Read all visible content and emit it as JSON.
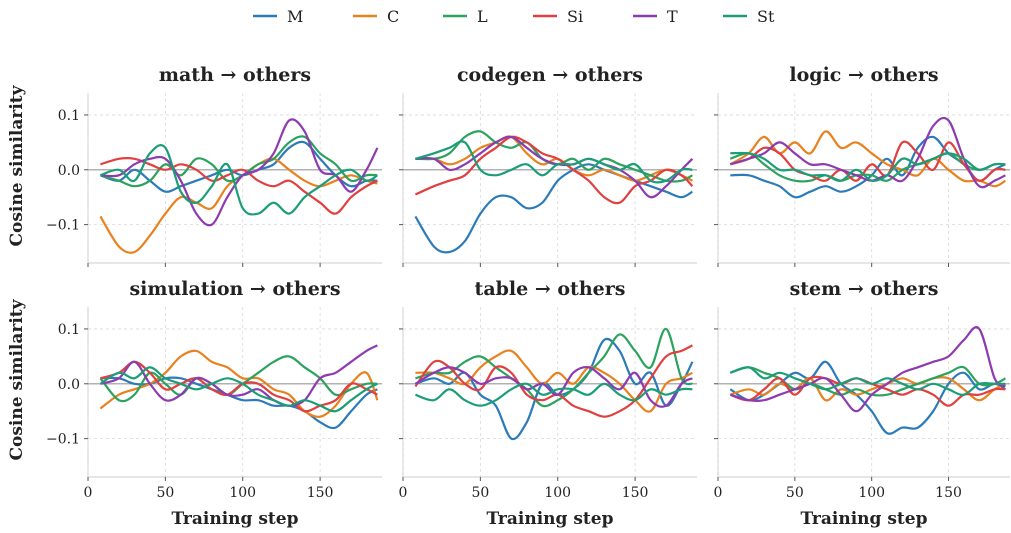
{
  "legend": [
    {
      "label": "M",
      "color": "#2b7bba"
    },
    {
      "label": "C",
      "color": "#e8821e"
    },
    {
      "label": "L",
      "color": "#2ca25f"
    },
    {
      "label": "Si",
      "color": "#e04040"
    },
    {
      "label": "T",
      "color": "#8e3ab0"
    },
    {
      "label": "St",
      "color": "#1b9e77"
    }
  ],
  "ylabel": "Cosine similarity",
  "xlabel": "Training step",
  "chart_data": [
    {
      "type": "line",
      "title": "math → others",
      "xlim": [
        0,
        190
      ],
      "ylim": [
        -0.17,
        0.14
      ],
      "xticks": [
        "0",
        "50",
        "100",
        "150"
      ],
      "yticks": [
        "−0.1",
        "0.0",
        "0.1"
      ],
      "x": [
        8,
        20,
        30,
        40,
        50,
        60,
        70,
        80,
        90,
        100,
        110,
        120,
        130,
        140,
        150,
        160,
        170,
        180,
        187
      ],
      "series": [
        {
          "name": "M",
          "values": [
            -0.01,
            -0.02,
            0.0,
            -0.02,
            -0.04,
            -0.03,
            -0.02,
            -0.01,
            0.0,
            -0.01,
            0.0,
            0.01,
            0.04,
            0.05,
            0.02,
            -0.01,
            -0.03,
            -0.02,
            -0.02
          ]
        },
        {
          "name": "C",
          "values": [
            -0.085,
            -0.14,
            -0.15,
            -0.12,
            -0.08,
            -0.05,
            -0.06,
            -0.07,
            -0.03,
            -0.01,
            0.01,
            0.02,
            0.0,
            -0.02,
            -0.03,
            -0.02,
            -0.01,
            -0.02,
            -0.025
          ]
        },
        {
          "name": "L",
          "values": [
            -0.01,
            -0.02,
            -0.03,
            -0.02,
            0.01,
            -0.01,
            0.02,
            0.01,
            -0.02,
            -0.01,
            0.01,
            0.02,
            0.05,
            0.06,
            0.03,
            0.01,
            -0.02,
            -0.01,
            -0.01
          ]
        },
        {
          "name": "Si",
          "values": [
            0.01,
            0.02,
            0.02,
            0.01,
            0.0,
            0.01,
            0.0,
            -0.02,
            -0.01,
            0.0,
            -0.02,
            -0.03,
            -0.02,
            -0.04,
            -0.06,
            -0.08,
            -0.05,
            -0.03,
            -0.02
          ]
        },
        {
          "name": "T",
          "values": [
            -0.01,
            -0.01,
            0.01,
            0.02,
            0.02,
            -0.02,
            -0.08,
            -0.1,
            -0.05,
            -0.01,
            0.0,
            0.03,
            0.09,
            0.07,
            0.0,
            -0.01,
            -0.04,
            0.0,
            0.04
          ]
        },
        {
          "name": "St",
          "values": [
            -0.01,
            0.0,
            -0.02,
            0.03,
            0.04,
            -0.04,
            -0.06,
            -0.03,
            0.01,
            -0.07,
            -0.08,
            -0.06,
            -0.08,
            -0.05,
            -0.03,
            -0.01,
            0.0,
            -0.02,
            -0.01
          ]
        }
      ]
    },
    {
      "type": "line",
      "title": "codegen → others",
      "xlim": [
        0,
        190
      ],
      "ylim": [
        -0.17,
        0.14
      ],
      "xticks": [
        "0",
        "50",
        "100",
        "150"
      ],
      "yticks": [
        "−0.1",
        "0.0",
        "0.1"
      ],
      "x": [
        8,
        20,
        30,
        40,
        50,
        60,
        70,
        80,
        90,
        100,
        110,
        120,
        130,
        140,
        150,
        160,
        170,
        180,
        187
      ],
      "series": [
        {
          "name": "M",
          "values": [
            -0.085,
            -0.14,
            -0.15,
            -0.13,
            -0.08,
            -0.05,
            -0.05,
            -0.07,
            -0.06,
            -0.02,
            0.0,
            0.01,
            0.0,
            -0.01,
            -0.02,
            -0.03,
            -0.04,
            -0.05,
            -0.04
          ]
        },
        {
          "name": "C",
          "values": [
            0.02,
            0.02,
            0.01,
            0.02,
            0.04,
            0.05,
            0.06,
            0.03,
            0.01,
            0.02,
            0.0,
            -0.01,
            0.0,
            -0.01,
            -0.02,
            -0.01,
            0.0,
            -0.01,
            -0.02
          ]
        },
        {
          "name": "L",
          "values": [
            0.02,
            0.02,
            0.03,
            0.06,
            0.07,
            0.05,
            0.04,
            0.05,
            0.02,
            0.01,
            0.02,
            0.0,
            0.02,
            0.01,
            0.0,
            -0.01,
            -0.02,
            -0.02,
            -0.01
          ]
        },
        {
          "name": "Si",
          "values": [
            -0.045,
            -0.03,
            -0.02,
            -0.01,
            0.02,
            0.04,
            0.06,
            0.05,
            0.03,
            0.02,
            0.0,
            -0.02,
            -0.05,
            -0.06,
            -0.03,
            -0.02,
            0.0,
            -0.01,
            -0.03
          ]
        },
        {
          "name": "T",
          "values": [
            0.02,
            0.02,
            0.0,
            0.01,
            0.03,
            0.05,
            0.06,
            0.04,
            0.02,
            0.01,
            0.01,
            0.02,
            0.01,
            0.0,
            -0.02,
            -0.05,
            -0.03,
            0.0,
            0.02
          ]
        },
        {
          "name": "St",
          "values": [
            0.02,
            0.03,
            0.04,
            0.05,
            0.0,
            -0.01,
            0.0,
            0.01,
            -0.01,
            0.01,
            0.01,
            0.02,
            0.01,
            0.0,
            0.01,
            -0.02,
            -0.02,
            0.0,
            0.0
          ]
        }
      ]
    },
    {
      "type": "line",
      "title": "logic → others",
      "xlim": [
        0,
        190
      ],
      "ylim": [
        -0.17,
        0.14
      ],
      "xticks": [
        "0",
        "50",
        "100",
        "150"
      ],
      "yticks": [
        "−0.1",
        "0.0",
        "0.1"
      ],
      "x": [
        8,
        20,
        30,
        40,
        50,
        60,
        70,
        80,
        90,
        100,
        110,
        120,
        130,
        140,
        150,
        160,
        170,
        180,
        187
      ],
      "series": [
        {
          "name": "M",
          "values": [
            -0.01,
            -0.01,
            -0.02,
            -0.03,
            -0.05,
            -0.04,
            -0.03,
            -0.04,
            -0.03,
            -0.01,
            0.02,
            -0.01,
            0.04,
            0.06,
            0.03,
            0.01,
            -0.02,
            0.0,
            0.01
          ]
        },
        {
          "name": "C",
          "values": [
            0.01,
            0.03,
            0.06,
            0.03,
            0.05,
            0.03,
            0.07,
            0.04,
            0.05,
            0.03,
            0.01,
            0.0,
            -0.01,
            0.02,
            0.0,
            -0.02,
            -0.02,
            -0.03,
            -0.02
          ]
        },
        {
          "name": "L",
          "values": [
            0.02,
            0.03,
            0.01,
            -0.01,
            -0.02,
            -0.02,
            -0.01,
            -0.02,
            -0.01,
            -0.01,
            -0.02,
            0.0,
            0.01,
            0.02,
            0.03,
            0.01,
            0.0,
            0.01,
            0.01
          ]
        },
        {
          "name": "Si",
          "values": [
            0.01,
            0.02,
            0.04,
            0.03,
            0.0,
            -0.01,
            -0.02,
            0.0,
            -0.02,
            0.01,
            -0.01,
            0.05,
            0.03,
            0.0,
            0.05,
            0.01,
            -0.02,
            0.0,
            0.0
          ]
        },
        {
          "name": "T",
          "values": [
            0.01,
            0.02,
            0.03,
            0.05,
            0.03,
            0.01,
            0.01,
            0.0,
            -0.01,
            -0.02,
            -0.01,
            -0.02,
            0.02,
            0.08,
            0.09,
            0.02,
            -0.03,
            -0.02,
            -0.01
          ]
        },
        {
          "name": "St",
          "values": [
            0.03,
            0.03,
            0.02,
            0.0,
            0.0,
            -0.01,
            -0.01,
            -0.02,
            0.0,
            -0.02,
            -0.01,
            0.02,
            0.01,
            0.02,
            0.03,
            0.02,
            0.0,
            0.01,
            0.01
          ]
        }
      ]
    },
    {
      "type": "line",
      "title": "simulation → others",
      "xlim": [
        0,
        190
      ],
      "ylim": [
        -0.17,
        0.14
      ],
      "xticks": [
        "0",
        "50",
        "100",
        "150"
      ],
      "yticks": [
        "−0.1",
        "0.0",
        "0.1"
      ],
      "x": [
        8,
        20,
        30,
        40,
        50,
        60,
        70,
        80,
        90,
        100,
        110,
        120,
        130,
        140,
        150,
        160,
        170,
        180,
        187
      ],
      "series": [
        {
          "name": "M",
          "values": [
            0.01,
            0.01,
            0.0,
            0.0,
            0.01,
            0.01,
            0.0,
            -0.01,
            -0.02,
            -0.03,
            -0.03,
            -0.04,
            -0.04,
            -0.05,
            -0.07,
            -0.08,
            -0.05,
            -0.02,
            -0.01
          ]
        },
        {
          "name": "C",
          "values": [
            -0.045,
            -0.02,
            -0.01,
            0.0,
            0.02,
            0.05,
            0.06,
            0.04,
            0.03,
            0.01,
            0.01,
            -0.01,
            -0.02,
            -0.05,
            -0.06,
            -0.04,
            0.0,
            0.02,
            -0.03
          ]
        },
        {
          "name": "L",
          "values": [
            0.01,
            -0.03,
            -0.02,
            0.02,
            0.0,
            -0.02,
            0.01,
            0.0,
            -0.02,
            0.0,
            0.02,
            0.04,
            0.05,
            0.03,
            0.01,
            -0.02,
            -0.01,
            0.0,
            0.0
          ]
        },
        {
          "name": "Si",
          "values": [
            0.01,
            0.02,
            0.04,
            0.02,
            -0.01,
            0.0,
            0.01,
            -0.01,
            -0.02,
            0.0,
            0.0,
            -0.02,
            -0.03,
            -0.05,
            -0.04,
            -0.03,
            0.0,
            -0.01,
            -0.02
          ]
        },
        {
          "name": "T",
          "values": [
            0.0,
            0.01,
            0.04,
            0.0,
            -0.03,
            -0.02,
            0.01,
            0.0,
            -0.02,
            -0.02,
            -0.01,
            -0.03,
            -0.04,
            -0.03,
            0.01,
            0.02,
            0.04,
            0.06,
            0.07
          ]
        },
        {
          "name": "St",
          "values": [
            0.0,
            0.02,
            0.01,
            0.03,
            0.01,
            0.0,
            -0.01,
            0.0,
            0.01,
            0.0,
            -0.02,
            -0.03,
            -0.04,
            -0.03,
            -0.04,
            -0.05,
            -0.03,
            -0.01,
            0.0
          ]
        }
      ]
    },
    {
      "type": "line",
      "title": "table → others",
      "xlim": [
        0,
        190
      ],
      "ylim": [
        -0.17,
        0.14
      ],
      "xticks": [
        "0",
        "50",
        "100",
        "150"
      ],
      "yticks": [
        "−0.1",
        "0.0",
        "0.1"
      ],
      "x": [
        8,
        20,
        30,
        40,
        50,
        60,
        70,
        80,
        90,
        100,
        110,
        120,
        130,
        140,
        150,
        160,
        170,
        180,
        187
      ],
      "series": [
        {
          "name": "M",
          "values": [
            0.0,
            0.01,
            0.0,
            0.02,
            -0.02,
            -0.04,
            -0.1,
            -0.07,
            0.0,
            -0.02,
            -0.01,
            0.02,
            0.08,
            0.06,
            0.0,
            0.02,
            -0.04,
            0.0,
            0.04
          ]
        },
        {
          "name": "C",
          "values": [
            0.02,
            0.02,
            0.01,
            0.0,
            0.03,
            0.05,
            0.06,
            0.03,
            0.0,
            0.02,
            0.0,
            0.03,
            0.02,
            0.0,
            -0.03,
            -0.05,
            0.0,
            0.01,
            0.02
          ]
        },
        {
          "name": "L",
          "values": [
            0.01,
            0.02,
            0.02,
            0.04,
            0.05,
            0.03,
            0.01,
            -0.01,
            -0.04,
            -0.03,
            -0.01,
            0.02,
            0.05,
            0.09,
            0.06,
            0.03,
            0.1,
            0.01,
            0.0
          ]
        },
        {
          "name": "Si",
          "values": [
            -0.005,
            0.04,
            0.03,
            0.0,
            -0.01,
            0.03,
            0.02,
            -0.02,
            -0.03,
            -0.02,
            -0.04,
            -0.05,
            -0.06,
            -0.05,
            -0.03,
            0.01,
            0.05,
            0.06,
            0.07
          ]
        },
        {
          "name": "T",
          "values": [
            0.0,
            0.02,
            0.03,
            0.02,
            0.0,
            0.01,
            0.01,
            -0.01,
            0.0,
            -0.02,
            0.02,
            0.03,
            0.01,
            -0.01,
            0.02,
            -0.03,
            -0.04,
            0.0,
            0.01
          ]
        },
        {
          "name": "St",
          "values": [
            -0.02,
            -0.03,
            -0.01,
            -0.03,
            -0.04,
            -0.03,
            -0.01,
            0.0,
            -0.02,
            -0.01,
            -0.01,
            -0.02,
            0.0,
            -0.02,
            -0.03,
            -0.01,
            -0.02,
            -0.01,
            -0.01
          ]
        }
      ]
    },
    {
      "type": "line",
      "title": "stem → others",
      "xlim": [
        0,
        190
      ],
      "ylim": [
        -0.17,
        0.14
      ],
      "xticks": [
        "0",
        "50",
        "100",
        "150"
      ],
      "yticks": [
        "−0.1",
        "0.0",
        "0.1"
      ],
      "x": [
        8,
        20,
        30,
        40,
        50,
        60,
        70,
        80,
        90,
        100,
        110,
        120,
        130,
        140,
        150,
        160,
        170,
        180,
        187
      ],
      "series": [
        {
          "name": "M",
          "values": [
            -0.01,
            -0.03,
            -0.02,
            0.0,
            0.02,
            0.01,
            0.04,
            0.0,
            -0.02,
            -0.05,
            -0.09,
            -0.08,
            -0.08,
            -0.05,
            0.0,
            0.02,
            -0.01,
            0.0,
            -0.01
          ]
        },
        {
          "name": "C",
          "values": [
            -0.02,
            -0.01,
            -0.02,
            0.0,
            -0.01,
            0.01,
            -0.03,
            -0.01,
            -0.02,
            -0.01,
            0.0,
            0.01,
            0.0,
            0.01,
            0.01,
            -0.01,
            -0.03,
            -0.01,
            0.0
          ]
        },
        {
          "name": "L",
          "values": [
            0.02,
            0.03,
            0.02,
            0.01,
            -0.01,
            0.0,
            -0.01,
            -0.02,
            -0.01,
            -0.02,
            -0.02,
            -0.01,
            0.0,
            0.01,
            0.02,
            0.03,
            0.0,
            0.0,
            0.01
          ]
        },
        {
          "name": "Si",
          "values": [
            -0.02,
            -0.03,
            -0.01,
            0.01,
            -0.02,
            0.01,
            0.01,
            0.0,
            0.01,
            0.0,
            -0.01,
            -0.02,
            -0.01,
            -0.02,
            -0.04,
            -0.02,
            -0.02,
            -0.01,
            -0.01
          ]
        },
        {
          "name": "T",
          "values": [
            -0.02,
            -0.03,
            -0.03,
            -0.02,
            -0.01,
            0.0,
            0.01,
            -0.02,
            -0.05,
            -0.02,
            0.0,
            0.02,
            0.03,
            0.04,
            0.05,
            0.08,
            0.1,
            0.01,
            -0.005
          ]
        },
        {
          "name": "St",
          "values": [
            0.02,
            0.03,
            0.01,
            0.02,
            0.01,
            0.0,
            -0.01,
            0.0,
            0.01,
            0.0,
            0.01,
            0.0,
            -0.01,
            0.0,
            -0.01,
            -0.02,
            0.0,
            0.0,
            0.0
          ]
        }
      ]
    }
  ]
}
